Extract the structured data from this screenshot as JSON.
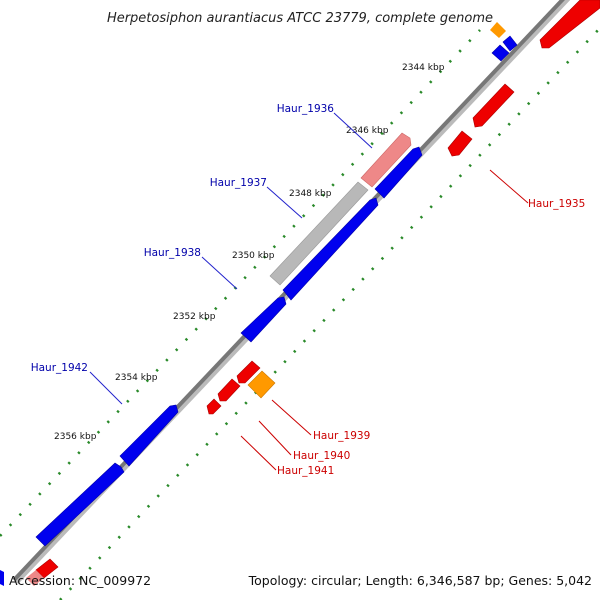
{
  "title": "Herpetosiphon aurantiacus ATCC 23779, complete genome",
  "footer": {
    "accession": "Accession: NC_009972",
    "summary": "Topology: circular; Length: 6,346,587 bp; Genes: 5,042"
  },
  "colors": {
    "background": "#ffffff",
    "backbone": "#777777",
    "tick_dots": "#2a8a2a",
    "forward_gene": "#0000ee",
    "reverse_gene": "#ee0000",
    "reverse_gene_light": "#ee8888",
    "rna_gene": "#ff9900",
    "pseudo_gene": "#b8b8b8",
    "label_forward": "#0000aa",
    "label_reverse": "#cc0000"
  },
  "ticks": [
    {
      "label": "2344 kbp"
    },
    {
      "label": "2346 kbp"
    },
    {
      "label": "2348 kbp"
    },
    {
      "label": "2350 kbp"
    },
    {
      "label": "2352 kbp"
    },
    {
      "label": "2354 kbp"
    },
    {
      "label": "2356 kbp"
    }
  ],
  "gene_labels": {
    "forward": [
      "Haur_1936",
      "Haur_1937",
      "Haur_1938",
      "Haur_1942"
    ],
    "reverse": [
      "Haur_1935",
      "Haur_1939",
      "Haur_1940",
      "Haur_1941"
    ]
  }
}
